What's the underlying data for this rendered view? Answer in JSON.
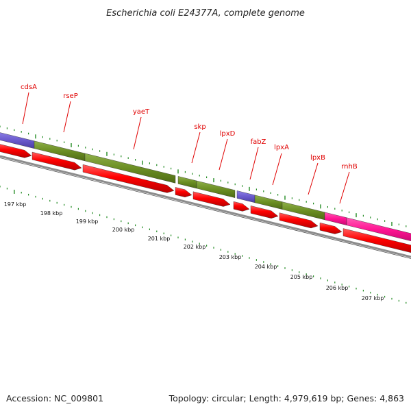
{
  "title": "Escherichia coli E24377A, complete genome",
  "footer": {
    "accession": "Accession: NC_009801",
    "summary": "Topology: circular; Length: 4,979,619 bp; Genes: 4,863"
  },
  "colors": {
    "forward_cds_green": "#6b8e23",
    "forward_cds_purple": "#6a5acd",
    "forward_cds_pink": "#ff1493",
    "reverse_cds_red": "#ff0000",
    "backbone_gray": "#808080",
    "tick_green": "#228b22",
    "label_red": "#e00000"
  },
  "gene_labels": [
    "cdsA",
    "rseP",
    "yaeT",
    "skp",
    "lpxD",
    "fabZ",
    "lpxA",
    "lpxB",
    "rnhB"
  ],
  "kbp_labels": [
    "197 kbp",
    "198 kbp",
    "199 kbp",
    "200 kbp",
    "201 kbp",
    "202 kbp",
    "203 kbp",
    "204 kbp",
    "205 kbp",
    "206 kbp",
    "207 kbp"
  ]
}
